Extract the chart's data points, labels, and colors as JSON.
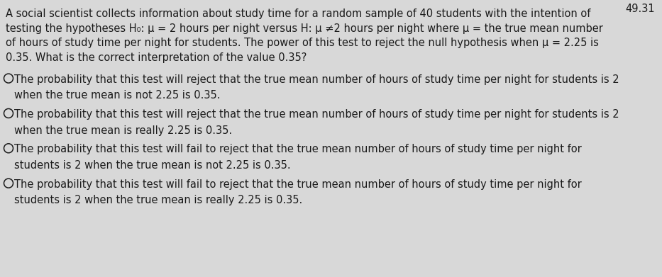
{
  "background_color": "#d8d8d8",
  "top_right_text": "49.31",
  "paragraph_lines": [
    "A social scientist collects information about study time for a random sample of 40 students with the intention of",
    "testing the hypotheses H₀: μ = 2 hours per night versus H⁡: μ ≠2 hours per night where μ = the true mean number",
    "of hours of study time per night for students. The power of this test to reject the null hypothesis when μ = 2.25 is",
    "0.35. What is the correct interpretation of the value 0.35?"
  ],
  "options": [
    [
      "The probability that this test will reject that the true mean number of hours of study time per night for students is 2",
      "when the true mean is not 2.25 is 0.35."
    ],
    [
      "The probability that this test will reject that the true mean number of hours of study time per night for students is 2",
      "when the true mean is really 2.25 is 0.35."
    ],
    [
      "The probability that this test will fail to reject that the true mean number of hours of study time per night for",
      "students is 2 when the true mean is not 2.25 is 0.35."
    ],
    [
      "The probability that this test will fail to reject that the true mean number of hours of study time per night for",
      "students is 2 when the true mean is really 2.25 is 0.35."
    ]
  ],
  "font_size": 10.5,
  "font_size_top": 10.5,
  "text_color": "#1a1a1a",
  "circle_color": "#1a1a1a",
  "fig_width": 9.33,
  "fig_height": 3.91,
  "dpi": 100
}
